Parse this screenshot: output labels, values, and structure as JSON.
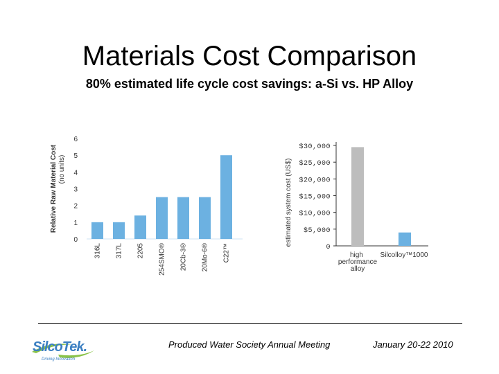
{
  "slide": {
    "title": "Materials Cost Comparison",
    "subtitle": "80% estimated life cycle cost savings: a-Si vs. HP Alloy"
  },
  "chart_data": [
    {
      "type": "bar",
      "ylabel": "Relative Raw Material Cost",
      "ylabel_sub": "(no units)",
      "categories": [
        "316L",
        "317L",
        "2205",
        "254SMO®",
        "20Cb-3®",
        "20Mo-6®",
        "C22™"
      ],
      "values": [
        1,
        1,
        1.4,
        2.5,
        2.5,
        2.5,
        5
      ],
      "yticks": [
        0,
        1,
        2,
        3,
        4,
        5,
        6
      ],
      "ylim": [
        0,
        6
      ],
      "color": "#6cb1e1"
    },
    {
      "type": "bar",
      "ylabel": "estimated system cost (US$)",
      "categories": [
        {
          "line1": "high",
          "line2": "performance",
          "line3": "alloy"
        },
        {
          "line1": "Silcolloy™1000",
          "line2": "",
          "line3": ""
        }
      ],
      "values": [
        29500,
        4000
      ],
      "colors": [
        "#bdbdbd",
        "#6cb1e1"
      ],
      "ytick_labels": [
        "0",
        "$5,000",
        "$10,000",
        "$15,000",
        "$20,000",
        "$25,000",
        "$30,000"
      ],
      "yticks": [
        0,
        5000,
        10000,
        15000,
        20000,
        25000,
        30000
      ],
      "ylim": [
        0,
        30000
      ]
    }
  ],
  "footer": {
    "event": "Produced Water Society Annual Meeting",
    "date": "January 20-22 2010"
  },
  "logo": {
    "word": "SilcoTek.",
    "tagline": "Driving Innovation"
  }
}
